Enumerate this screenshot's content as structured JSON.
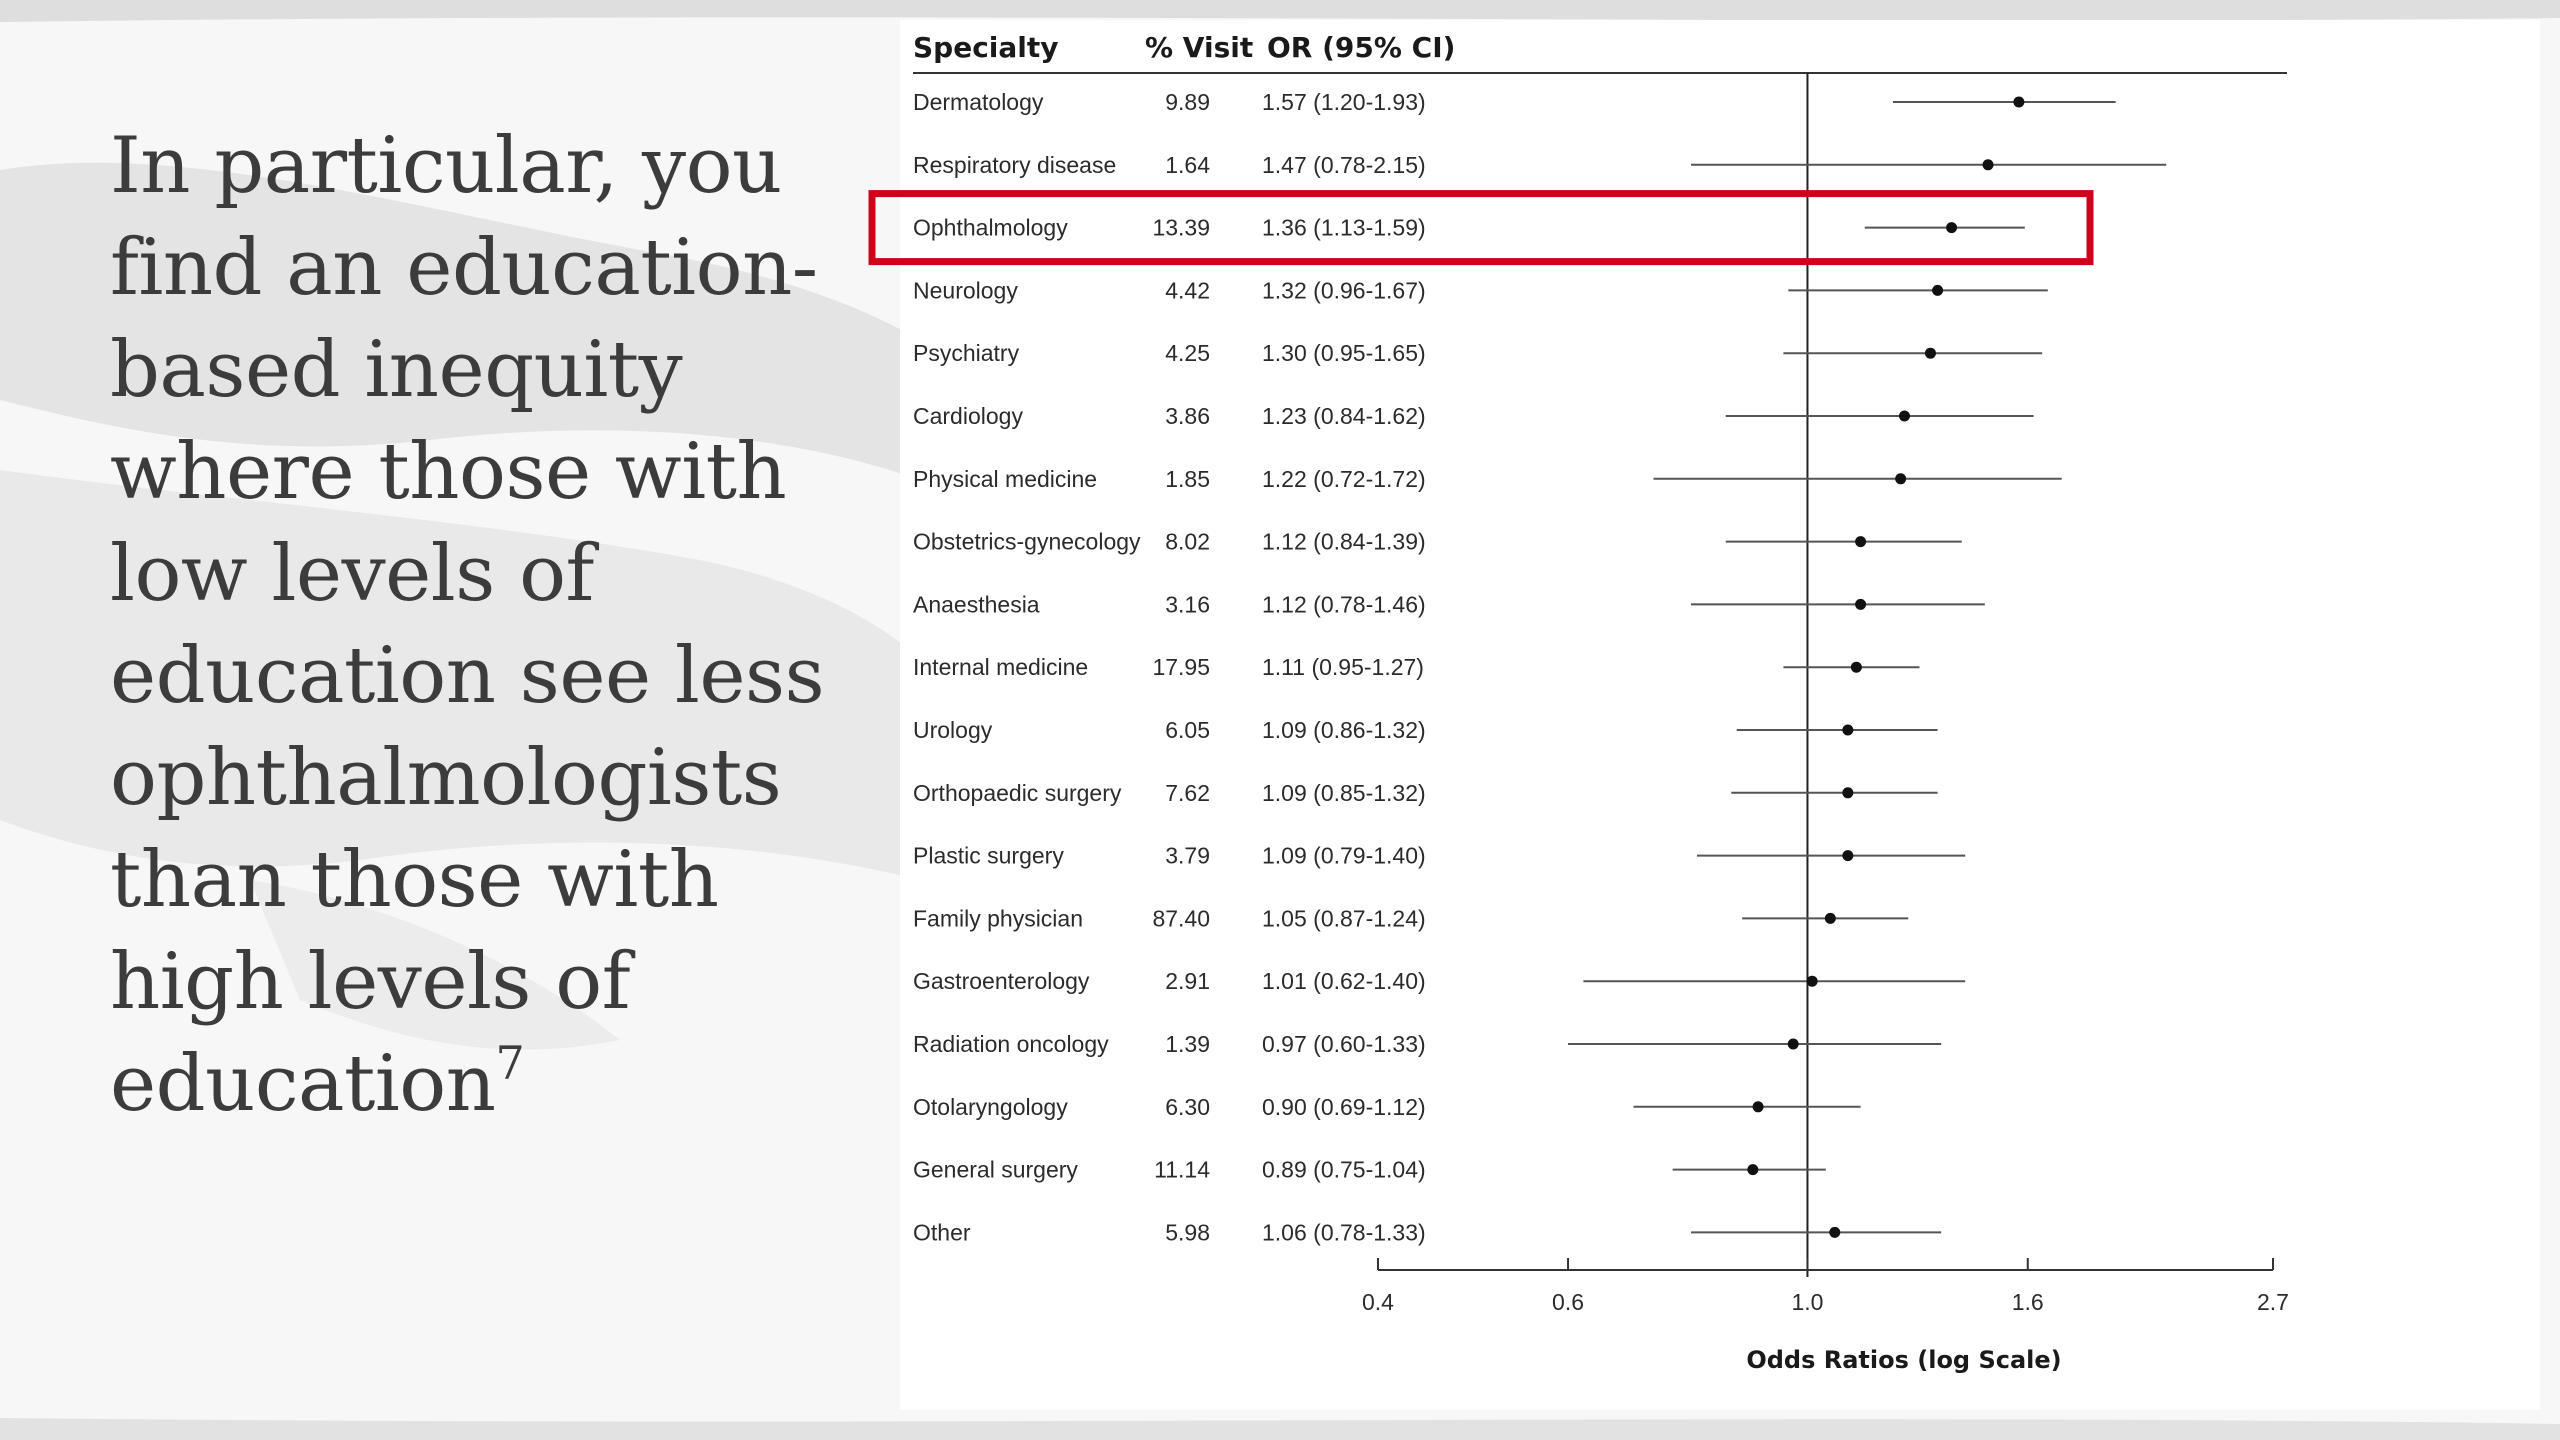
{
  "slide": {
    "body_text": "In particular, you find an education-based inequity where those with low levels of education see less ophthalmologists than those with high levels of education",
    "footnote_marker": "7"
  },
  "colors": {
    "text": "#3c3c3c",
    "highlight": "#d0021b",
    "marker": "#111111",
    "ci_line": "#555555"
  },
  "chart_data": {
    "type": "forest",
    "columns": {
      "specialty": "Specialty",
      "pct_visit": "% Visit",
      "or_ci": "OR (95% CI)"
    },
    "xlabel": "Odds Ratios (log Scale)",
    "x_scale": "log",
    "xlim": [
      0.4,
      2.7
    ],
    "xticks": [
      0.4,
      0.6,
      1.0,
      1.6,
      2.7
    ],
    "xtick_labels": [
      "0.4",
      "0.6",
      "1.0",
      "1.6",
      "2.7"
    ],
    "reference_line": 1.0,
    "highlighted_row": "Ophthalmology",
    "rows": [
      {
        "specialty": "Dermatology",
        "pct_visit": "9.89",
        "or_ci": "1.57 (1.20-1.93)",
        "or": 1.57,
        "lo": 1.2,
        "hi": 1.93
      },
      {
        "specialty": "Respiratory disease",
        "pct_visit": "1.64",
        "or_ci": "1.47 (0.78-2.15)",
        "or": 1.47,
        "lo": 0.78,
        "hi": 2.15
      },
      {
        "specialty": "Ophthalmology",
        "pct_visit": "13.39",
        "or_ci": "1.36 (1.13-1.59)",
        "or": 1.36,
        "lo": 1.13,
        "hi": 1.59
      },
      {
        "specialty": "Neurology",
        "pct_visit": "4.42",
        "or_ci": "1.32 (0.96-1.67)",
        "or": 1.32,
        "lo": 0.96,
        "hi": 1.67
      },
      {
        "specialty": "Psychiatry",
        "pct_visit": "4.25",
        "or_ci": "1.30 (0.95-1.65)",
        "or": 1.3,
        "lo": 0.95,
        "hi": 1.65
      },
      {
        "specialty": "Cardiology",
        "pct_visit": "3.86",
        "or_ci": "1.23 (0.84-1.62)",
        "or": 1.23,
        "lo": 0.84,
        "hi": 1.62
      },
      {
        "specialty": "Physical medicine",
        "pct_visit": "1.85",
        "or_ci": "1.22 (0.72-1.72)",
        "or": 1.22,
        "lo": 0.72,
        "hi": 1.72
      },
      {
        "specialty": "Obstetrics-gynecology",
        "pct_visit": "8.02",
        "or_ci": "1.12 (0.84-1.39)",
        "or": 1.12,
        "lo": 0.84,
        "hi": 1.39
      },
      {
        "specialty": "Anaesthesia",
        "pct_visit": "3.16",
        "or_ci": "1.12 (0.78-1.46)",
        "or": 1.12,
        "lo": 0.78,
        "hi": 1.46
      },
      {
        "specialty": "Internal medicine",
        "pct_visit": "17.95",
        "or_ci": "1.11 (0.95-1.27)",
        "or": 1.11,
        "lo": 0.95,
        "hi": 1.27
      },
      {
        "specialty": "Urology",
        "pct_visit": "6.05",
        "or_ci": "1.09 (0.86-1.32)",
        "or": 1.09,
        "lo": 0.86,
        "hi": 1.32
      },
      {
        "specialty": "Orthopaedic surgery",
        "pct_visit": "7.62",
        "or_ci": "1.09 (0.85-1.32)",
        "or": 1.09,
        "lo": 0.85,
        "hi": 1.32
      },
      {
        "specialty": "Plastic surgery",
        "pct_visit": "3.79",
        "or_ci": "1.09 (0.79-1.40)",
        "or": 1.09,
        "lo": 0.79,
        "hi": 1.4
      },
      {
        "specialty": "Family physician",
        "pct_visit": "87.40",
        "or_ci": "1.05 (0.87-1.24)",
        "or": 1.05,
        "lo": 0.87,
        "hi": 1.24
      },
      {
        "specialty": "Gastroenterology",
        "pct_visit": "2.91",
        "or_ci": "1.01 (0.62-1.40)",
        "or": 1.01,
        "lo": 0.62,
        "hi": 1.4
      },
      {
        "specialty": "Radiation oncology",
        "pct_visit": "1.39",
        "or_ci": "0.97 (0.60-1.33)",
        "or": 0.97,
        "lo": 0.6,
        "hi": 1.33
      },
      {
        "specialty": "Otolaryngology",
        "pct_visit": "6.30",
        "or_ci": "0.90 (0.69-1.12)",
        "or": 0.9,
        "lo": 0.69,
        "hi": 1.12
      },
      {
        "specialty": "General surgery",
        "pct_visit": "11.14",
        "or_ci": "0.89 (0.75-1.04)",
        "or": 0.89,
        "lo": 0.75,
        "hi": 1.04
      },
      {
        "specialty": "Other",
        "pct_visit": "5.98",
        "or_ci": "1.06 (0.78-1.33)",
        "or": 1.06,
        "lo": 0.78,
        "hi": 1.33
      }
    ]
  }
}
